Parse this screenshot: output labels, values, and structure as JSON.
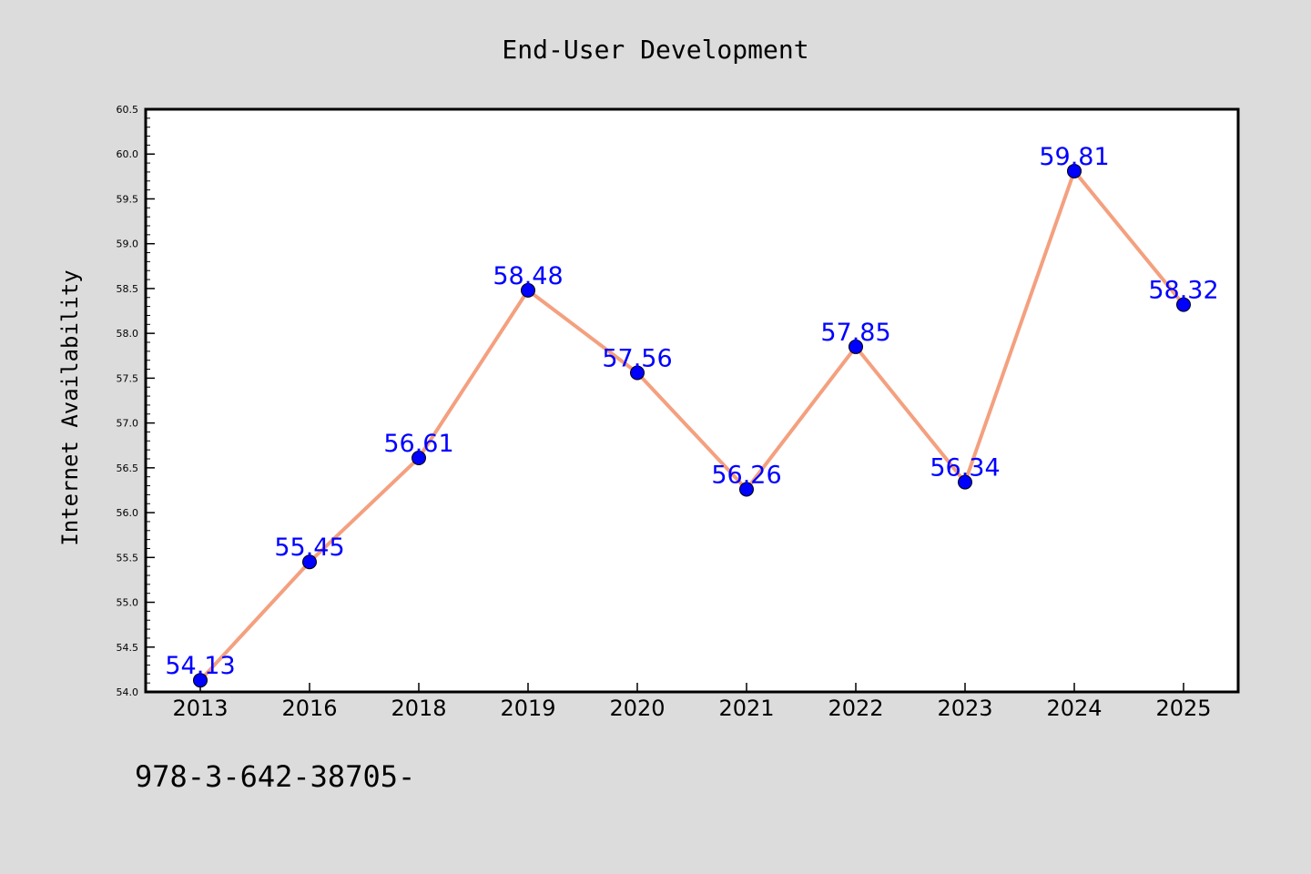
{
  "chart_data": {
    "type": "line",
    "title": "End-User Development",
    "xlabel": "",
    "ylabel": "Internet Availability",
    "categories": [
      "2013",
      "2016",
      "2018",
      "2019",
      "2020",
      "2021",
      "2022",
      "2023",
      "2024",
      "2025"
    ],
    "series": [
      {
        "values": [
          54.13,
          55.45,
          56.61,
          58.48,
          57.56,
          56.26,
          57.85,
          56.34,
          59.81,
          58.32
        ],
        "line_color": "#f4a07f",
        "marker_color": "#0000ff",
        "label_color": "#0000ff"
      }
    ],
    "ylim": [
      54.0,
      60.5
    ],
    "y_ticks": [
      "54.0",
      "54.5",
      "55.0",
      "55.5",
      "56.0",
      "56.5",
      "57.0",
      "57.5",
      "58.0",
      "58.5",
      "59.0",
      "59.5",
      "60.0",
      "60.5"
    ],
    "grid": false,
    "legend": "none"
  },
  "footer": {
    "isbn_text": "978-3-642-38705-"
  },
  "colors": {
    "background": "#dcdcdc",
    "plot_background": "#ffffff",
    "axis": "#000000"
  }
}
